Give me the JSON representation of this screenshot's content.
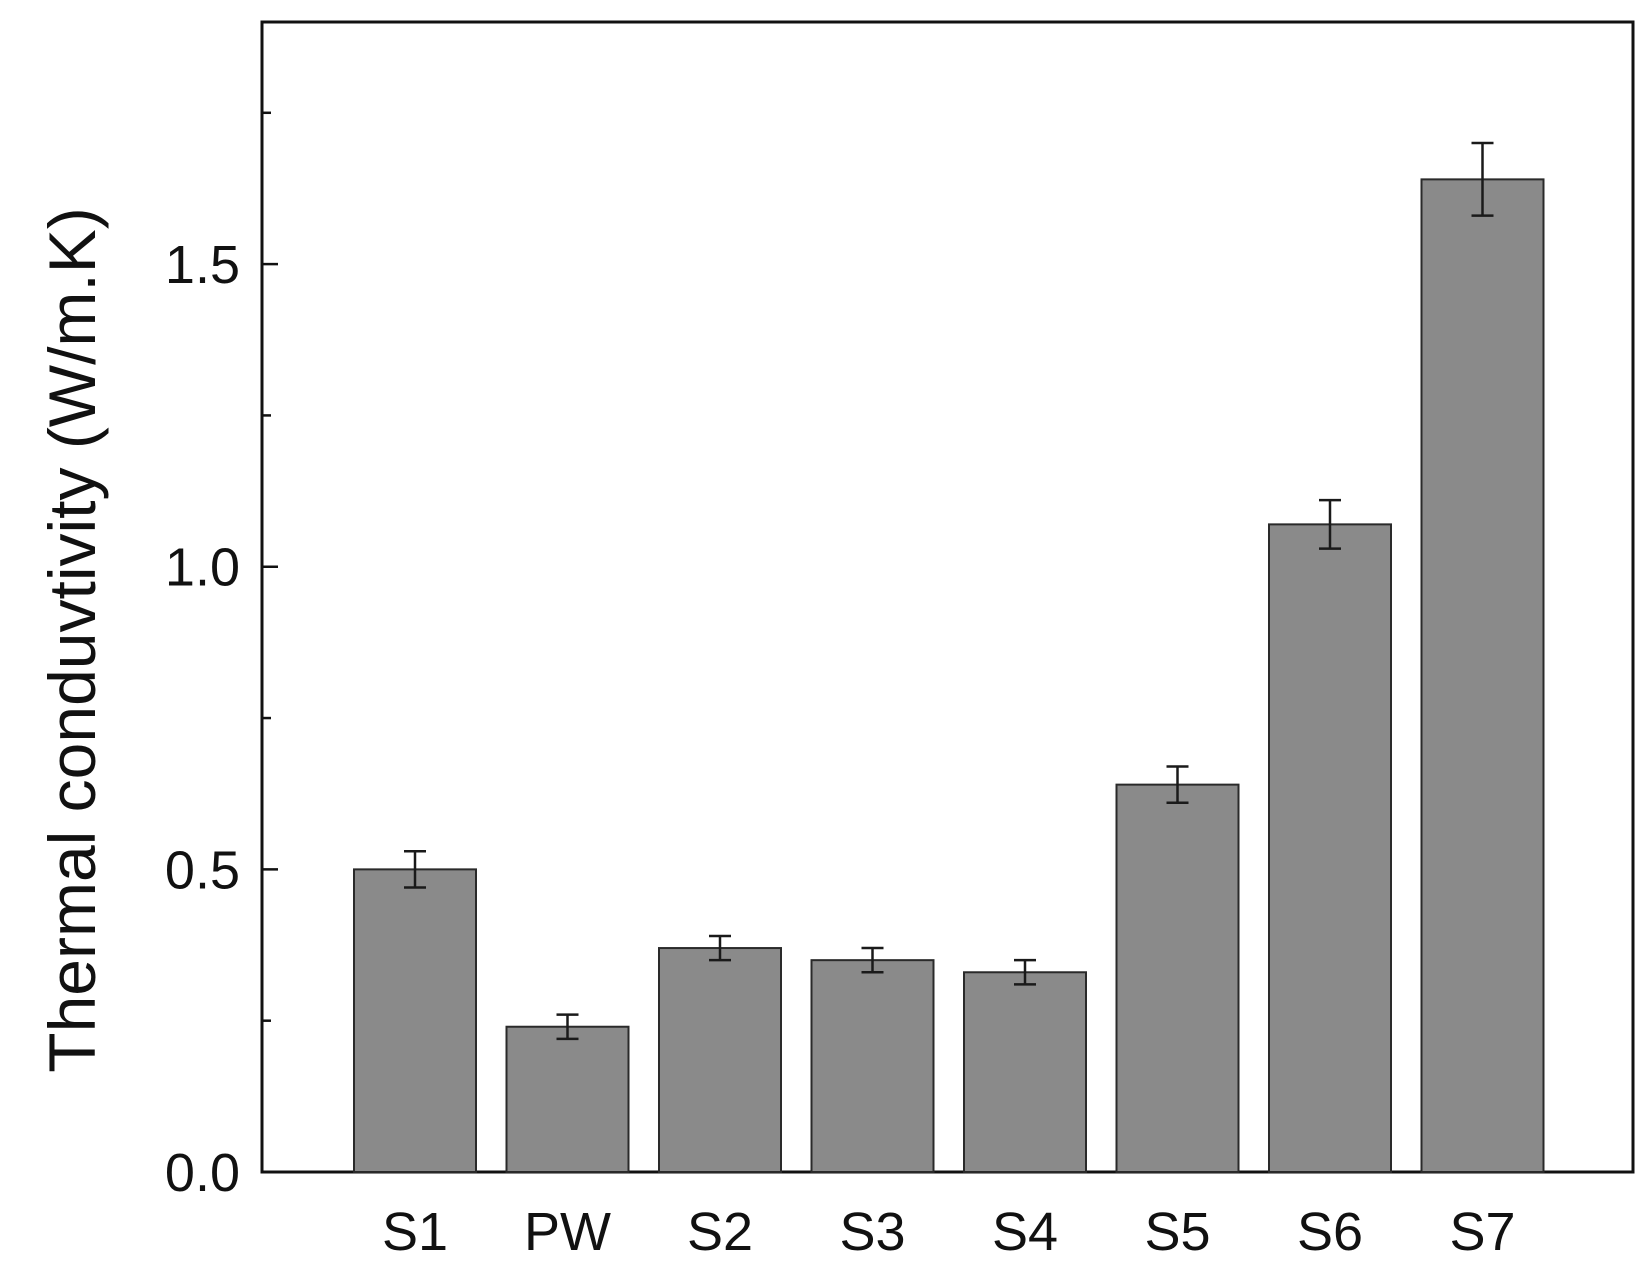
{
  "chart_data": {
    "type": "bar",
    "title": "",
    "xlabel": "",
    "ylabel": "Thermal conduvtivity (W/m.K)",
    "categories": [
      "S1",
      "PW",
      "S2",
      "S3",
      "S4",
      "S5",
      "S6",
      "S7"
    ],
    "values": [
      0.5,
      0.24,
      0.37,
      0.35,
      0.33,
      0.64,
      1.07,
      1.64
    ],
    "errors": [
      0.03,
      0.02,
      0.02,
      0.02,
      0.02,
      0.03,
      0.04,
      0.06
    ],
    "ylim": [
      0,
      1.9
    ],
    "yticks_major": [
      0.0,
      0.5,
      1.0,
      1.5
    ],
    "yticks_major_labels": [
      "0.0",
      "0.5",
      "1.0",
      "1.5"
    ],
    "yticks_minor": [
      0.25,
      0.75,
      1.25,
      1.75
    ],
    "grid": false,
    "legend": "none",
    "bar_color": "#8a8a8a",
    "frame_color": "#111111"
  }
}
